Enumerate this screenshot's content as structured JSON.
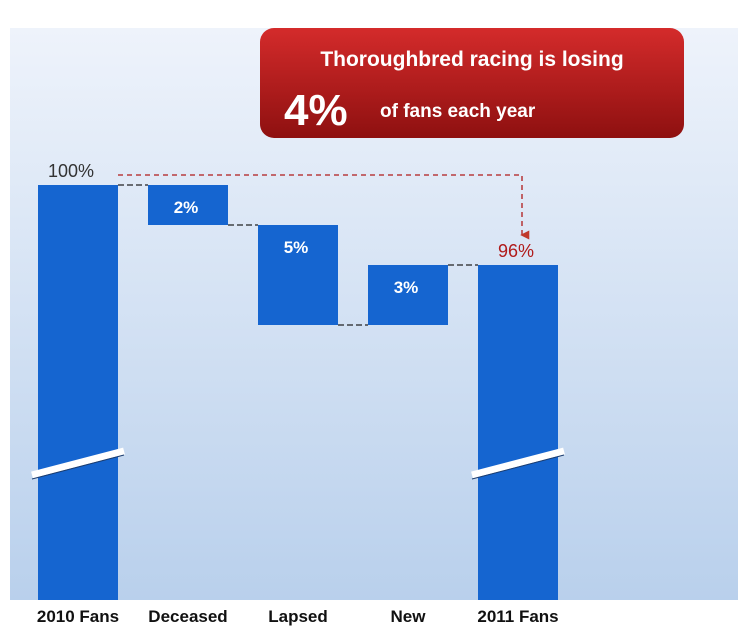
{
  "chart_data": {
    "type": "bar",
    "subtype": "waterfall",
    "title": "",
    "callout": {
      "line1": "Thoroughbred racing is losing",
      "big_value": "4%",
      "line2": "of fans each year"
    },
    "categories": [
      "2010 Fans",
      "Deceased",
      "Lapsed",
      "New",
      "2011 Fans"
    ],
    "steps": [
      {
        "category": "2010 Fans",
        "kind": "total",
        "start": 0,
        "end": 100,
        "label": "100%"
      },
      {
        "category": "Deceased",
        "kind": "decrease",
        "start": 100,
        "end": 98,
        "label": "2%"
      },
      {
        "category": "Lapsed",
        "kind": "decrease",
        "start": 98,
        "end": 93,
        "label": "5%"
      },
      {
        "category": "New",
        "kind": "increase",
        "start": 93,
        "end": 96,
        "label": "3%"
      },
      {
        "category": "2011 Fans",
        "kind": "total",
        "start": 0,
        "end": 96,
        "label": "96%"
      }
    ],
    "axis_break": true,
    "bar_color": "#1565d0",
    "accent_color": "#b01a1a",
    "background_top": "#eef3fb",
    "background_bottom": "#b9d0ec"
  }
}
